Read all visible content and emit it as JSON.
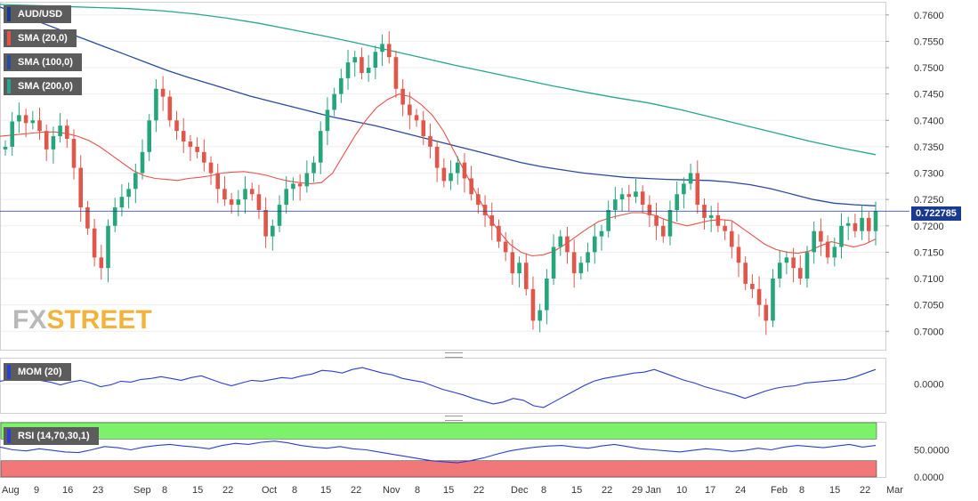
{
  "legend": {
    "pair": "AUD/USD",
    "sma20": "SMA (20,0)",
    "sma100": "SMA (100,0)",
    "sma200": "SMA (200,0)",
    "mom": "MOM (20)",
    "rsi": "RSI (14,70,30,1)"
  },
  "price_tag": "0.722785",
  "watermark": {
    "fx": "FX",
    "street": "STREET"
  },
  "colors": {
    "bull": "#27a57a",
    "bear": "#e0564b",
    "sma20": "#e8524a",
    "sma100": "#2a4a9e",
    "sma200": "#26a68e",
    "mom": "#2a3fd0",
    "rsi": "#2a3fd0",
    "overbought": "#7cf26a",
    "oversold": "#f07878",
    "price_line": "#1a3a8f"
  },
  "chart_data": {
    "type": "candlestick",
    "instrument": "AUD/USD",
    "y_ticks": [
      "0.7600",
      "0.7550",
      "0.7500",
      "0.7450",
      "0.7400",
      "0.7350",
      "0.7300",
      "0.7250",
      "0.7200",
      "0.7150",
      "0.7100",
      "0.7050",
      "0.7000"
    ],
    "ylim": [
      0.6965,
      0.7625
    ],
    "x_ticks": [
      "Aug",
      "9",
      "16",
      "23",
      "Sep",
      "8",
      "15",
      "22",
      "Oct",
      "8",
      "15",
      "22",
      "Nov",
      "8",
      "15",
      "22",
      "Dec",
      "8",
      "15",
      "22",
      "29 Jan",
      "10",
      "17",
      "24",
      "Feb",
      "8",
      "15",
      "22",
      "Mar"
    ],
    "last_price": 0.722785,
    "closes": [
      0.735,
      0.7398,
      0.741,
      0.7395,
      0.74,
      0.738,
      0.7345,
      0.737,
      0.739,
      0.7365,
      0.731,
      0.7235,
      0.7195,
      0.714,
      0.712,
      0.72,
      0.7235,
      0.7255,
      0.727,
      0.73,
      0.734,
      0.74,
      0.746,
      0.7445,
      0.74,
      0.738,
      0.736,
      0.735,
      0.734,
      0.732,
      0.73,
      0.727,
      0.725,
      0.724,
      0.725,
      0.727,
      0.726,
      0.723,
      0.718,
      0.72,
      0.724,
      0.727,
      0.728,
      0.7275,
      0.73,
      0.732,
      0.738,
      0.742,
      0.745,
      0.748,
      0.751,
      0.752,
      0.749,
      0.75,
      0.753,
      0.7545,
      0.752,
      0.746,
      0.743,
      0.741,
      0.74,
      0.737,
      0.735,
      0.731,
      0.7285,
      0.73,
      0.732,
      0.729,
      0.726,
      0.724,
      0.722,
      0.72,
      0.717,
      0.715,
      0.711,
      0.713,
      0.708,
      0.702,
      0.704,
      0.71,
      0.716,
      0.718,
      0.715,
      0.711,
      0.713,
      0.715,
      0.718,
      0.719,
      0.723,
      0.725,
      0.726,
      0.7255,
      0.7265,
      0.724,
      0.722,
      0.72,
      0.718,
      0.723,
      0.726,
      0.728,
      0.73,
      0.724,
      0.7215,
      0.722,
      0.72,
      0.719,
      0.716,
      0.713,
      0.709,
      0.708,
      0.705,
      0.702,
      0.71,
      0.713,
      0.714,
      0.712,
      0.71,
      0.715,
      0.719,
      0.717,
      0.714,
      0.716,
      0.72,
      0.7205,
      0.719,
      0.7215,
      0.719,
      0.7228
    ],
    "opens": [
      0.7345,
      0.735,
      0.7398,
      0.741,
      0.7395,
      0.74,
      0.738,
      0.7345,
      0.737,
      0.739,
      0.7365,
      0.731,
      0.7235,
      0.7195,
      0.714,
      0.712,
      0.72,
      0.7235,
      0.7255,
      0.727,
      0.73,
      0.734,
      0.74,
      0.746,
      0.7445,
      0.74,
      0.738,
      0.736,
      0.735,
      0.734,
      0.732,
      0.73,
      0.727,
      0.725,
      0.724,
      0.725,
      0.727,
      0.726,
      0.723,
      0.718,
      0.72,
      0.724,
      0.727,
      0.728,
      0.7275,
      0.73,
      0.732,
      0.738,
      0.742,
      0.745,
      0.748,
      0.751,
      0.752,
      0.749,
      0.75,
      0.753,
      0.7545,
      0.752,
      0.746,
      0.743,
      0.741,
      0.74,
      0.737,
      0.735,
      0.731,
      0.7285,
      0.73,
      0.732,
      0.729,
      0.726,
      0.724,
      0.722,
      0.72,
      0.717,
      0.715,
      0.711,
      0.713,
      0.708,
      0.702,
      0.704,
      0.71,
      0.716,
      0.718,
      0.715,
      0.711,
      0.713,
      0.715,
      0.718,
      0.719,
      0.723,
      0.725,
      0.726,
      0.7255,
      0.7265,
      0.724,
      0.722,
      0.72,
      0.718,
      0.723,
      0.726,
      0.728,
      0.73,
      0.724,
      0.7215,
      0.722,
      0.72,
      0.719,
      0.716,
      0.713,
      0.709,
      0.708,
      0.705,
      0.702,
      0.71,
      0.713,
      0.714,
      0.712,
      0.71,
      0.715,
      0.719,
      0.717,
      0.714,
      0.716,
      0.72,
      0.7205,
      0.719,
      0.7215,
      0.719
    ],
    "sma20": [
      0.737,
      0.7372,
      0.7374,
      0.7376,
      0.7378,
      0.7378,
      0.7375,
      0.737,
      0.7362,
      0.735,
      0.7335,
      0.732,
      0.7305,
      0.7295,
      0.729,
      0.7288,
      0.7286,
      0.729,
      0.7292,
      0.7295,
      0.73,
      0.7302,
      0.7303,
      0.73,
      0.7296,
      0.729,
      0.7285,
      0.7282,
      0.728,
      0.7282,
      0.73,
      0.7335,
      0.737,
      0.74,
      0.7425,
      0.744,
      0.745,
      0.7445,
      0.743,
      0.741,
      0.738,
      0.734,
      0.73,
      0.726,
      0.722,
      0.719,
      0.7165,
      0.715,
      0.7143,
      0.7145,
      0.7152,
      0.7165,
      0.718,
      0.7195,
      0.7208,
      0.7215,
      0.722,
      0.7225,
      0.7225,
      0.722,
      0.7212,
      0.7205,
      0.72,
      0.7205,
      0.721,
      0.7212,
      0.721,
      0.7195,
      0.718,
      0.7165,
      0.7155,
      0.715,
      0.7148,
      0.7152,
      0.7162,
      0.717,
      0.7165,
      0.716,
      0.7165,
      0.7175
    ],
    "sma100": [
      0.7615,
      0.76,
      0.7585,
      0.757,
      0.7555,
      0.754,
      0.7525,
      0.751,
      0.7495,
      0.7482,
      0.747,
      0.7458,
      0.7446,
      0.7436,
      0.7426,
      0.7416,
      0.7406,
      0.7398,
      0.739,
      0.738,
      0.737,
      0.736,
      0.735,
      0.734,
      0.733,
      0.732,
      0.7312,
      0.7306,
      0.73,
      0.7296,
      0.7292,
      0.729,
      0.7288,
      0.7287,
      0.7286,
      0.7283,
      0.7278,
      0.727,
      0.726,
      0.725,
      0.7243,
      0.724,
      0.7238
    ],
    "sma200": [
      0.762,
      0.7618,
      0.7616,
      0.7614,
      0.7612,
      0.7608,
      0.7602,
      0.7594,
      0.7584,
      0.7572,
      0.756,
      0.7547,
      0.7533,
      0.7519,
      0.7505,
      0.7492,
      0.7479,
      0.7466,
      0.7454,
      0.7443,
      0.7433,
      0.742,
      0.7405,
      0.739,
      0.7375,
      0.736,
      0.7347,
      0.7335
    ],
    "mom": [
      0.3,
      0.5,
      0.8,
      0.6,
      0.4,
      0.2,
      -0.1,
      0.2,
      0.4,
      0.1,
      -0.3,
      -0.1,
      0.3,
      0.2,
      0.5,
      0.6,
      0.8,
      0.6,
      0.4,
      0.7,
      0.9,
      0.5,
      0.1,
      -0.2,
      0.1,
      0.4,
      0.3,
      0.5,
      0.7,
      0.6,
      0.9,
      1.1,
      1.5,
      1.4,
      1.2,
      1.6,
      1.8,
      1.5,
      1.2,
      1.0,
      0.6,
      0.4,
      0.2,
      -0.2,
      -0.6,
      -0.9,
      -1.2,
      -1.6,
      -1.9,
      -2.2,
      -2.0,
      -1.6,
      -1.8,
      -2.4,
      -2.6,
      -2.0,
      -1.4,
      -0.8,
      -0.2,
      0.3,
      0.6,
      0.8,
      1.0,
      1.2,
      1.3,
      1.6,
      1.2,
      0.8,
      0.4,
      0.1,
      -0.3,
      -0.6,
      -0.9,
      -1.2,
      -1.6,
      -1.2,
      -0.8,
      -0.5,
      -0.3,
      -0.2,
      0.1,
      0.2,
      0.3,
      0.4,
      0.5,
      0.8,
      1.2,
      1.6
    ],
    "rsi": [
      55,
      50,
      48,
      52,
      49,
      46,
      45,
      50,
      56,
      54,
      50,
      55,
      58,
      60,
      57,
      55,
      52,
      58,
      62,
      60,
      64,
      66,
      63,
      58,
      55,
      53,
      56,
      52,
      50,
      46,
      42,
      38,
      34,
      30,
      28,
      26,
      30,
      35,
      42,
      48,
      52,
      55,
      57,
      58,
      55,
      53,
      57,
      60,
      56,
      52,
      50,
      48,
      46,
      49,
      52,
      50,
      47,
      49,
      53,
      50,
      55,
      58,
      56,
      54,
      57,
      60,
      55,
      58
    ],
    "rsi_levels": {
      "overbought": 70,
      "oversold": 30
    },
    "mom_ticks": [
      "0.0000"
    ],
    "rsi_ticks": [
      "50.0000",
      "0.0000"
    ]
  }
}
